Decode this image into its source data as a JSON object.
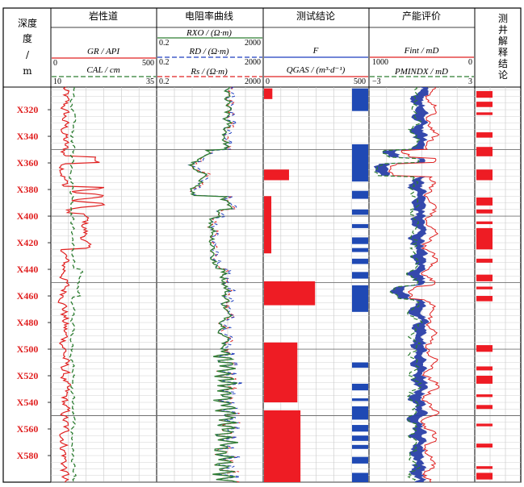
{
  "chart_data": {
    "type": "line",
    "title": "",
    "depth_axis": {
      "header_top": "深度",
      "header_mid": "度",
      "header_slash": "/",
      "header_unit": "m",
      "ticks": [
        "X320",
        "X340",
        "X360",
        "X380",
        "X400",
        "X420",
        "X440",
        "X460",
        "X480",
        "X500",
        "X520",
        "X540",
        "X560",
        "X580"
      ],
      "tick_values": [
        320,
        340,
        360,
        380,
        400,
        420,
        440,
        460,
        480,
        500,
        520,
        540,
        560,
        580
      ],
      "range": [
        303,
        600
      ]
    },
    "tracks": [
      {
        "title": "岩性道",
        "curves": [
          {
            "label": "GR / API",
            "min": "0",
            "max": "500",
            "color": "#e02020",
            "style": "solid"
          },
          {
            "label": "CAL / cm",
            "min": "10",
            "max": "35",
            "color": "#2e7d32",
            "style": "dashed"
          }
        ]
      },
      {
        "title": "电阻率曲线",
        "curves": [
          {
            "label": "RXO / (Ω·m)",
            "min": "0.2",
            "max": "2000",
            "color": "#2e7d32",
            "style": "solid"
          },
          {
            "label": "RD / (Ω·m)",
            "min": "0.2",
            "max": "2000",
            "color": "#1f3fbf",
            "style": "dashed"
          },
          {
            "label": "Rs / (Ω·m)",
            "min": "0.2",
            "max": "2000",
            "color": "#e02020",
            "style": "dashed"
          }
        ]
      },
      {
        "title": "测试结论",
        "curves": [
          {
            "label": "F",
            "min": "",
            "max": "",
            "color": "#1f3fbf",
            "style": "solid"
          },
          {
            "label": "QGAS / (m³·d⁻¹)",
            "min": "0",
            "max": "500",
            "color": "#e02020",
            "style": "solid"
          }
        ]
      },
      {
        "title": "产能评价",
        "curves": [
          {
            "label": "Fint / mD",
            "min": "1000",
            "max": "0",
            "color": "#e02020",
            "style": "solid"
          },
          {
            "label": "PMINDX / mD",
            "min": "−3",
            "max": "3",
            "color": "#2e7d32",
            "style": "dashed"
          }
        ]
      },
      {
        "title": "测井解释结论",
        "curves": []
      }
    ],
    "qgas_intervals": [
      {
        "top": 304,
        "bottom": 312,
        "value": 40
      },
      {
        "top": 365,
        "bottom": 373,
        "value": 120
      },
      {
        "top": 385,
        "bottom": 428,
        "value": 35
      },
      {
        "top": 449,
        "bottom": 467,
        "value": 245
      },
      {
        "top": 495,
        "bottom": 540,
        "value": 160
      },
      {
        "top": 546,
        "bottom": 600,
        "value": 175
      }
    ],
    "f_blocks": [
      [
        304,
        321
      ],
      [
        346,
        374
      ],
      [
        381,
        387
      ],
      [
        395,
        399
      ],
      [
        406,
        409
      ],
      [
        416,
        421
      ],
      [
        424,
        427
      ],
      [
        432,
        436
      ],
      [
        442,
        447
      ],
      [
        452,
        472
      ],
      [
        510,
        514
      ],
      [
        526,
        531
      ],
      [
        537,
        539
      ],
      [
        543,
        553
      ],
      [
        557,
        562
      ],
      [
        565,
        569
      ],
      [
        572,
        575
      ],
      [
        581,
        586
      ],
      [
        593,
        600
      ]
    ],
    "interp_blocks": [
      [
        306,
        311
      ],
      [
        314,
        318
      ],
      [
        322,
        324
      ],
      [
        337,
        341
      ],
      [
        348,
        355
      ],
      [
        365,
        373
      ],
      [
        386,
        392
      ],
      [
        395,
        398
      ],
      [
        404,
        406
      ],
      [
        409,
        425
      ],
      [
        432,
        435
      ],
      [
        444,
        449
      ],
      [
        453,
        455
      ],
      [
        460,
        464
      ],
      [
        497,
        502
      ],
      [
        513,
        516
      ],
      [
        520,
        526
      ],
      [
        534,
        536
      ],
      [
        542,
        545
      ],
      [
        556,
        558
      ],
      [
        571,
        574
      ],
      [
        588,
        590
      ],
      [
        593,
        598
      ]
    ],
    "grid": true,
    "legend": "header"
  }
}
